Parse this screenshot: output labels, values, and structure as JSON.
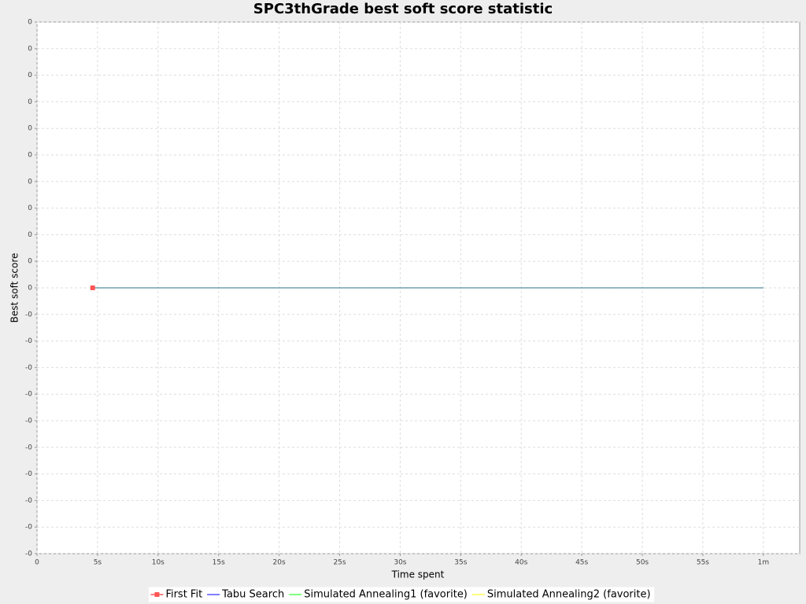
{
  "chart_data": {
    "type": "line",
    "title": "SPC3thGrade best soft score statistic",
    "x_label": "Time spent",
    "y_label": "Best soft score",
    "xlim": [
      0,
      63
    ],
    "xticks": [
      0,
      {
        "value": 5,
        "label": "5s"
      },
      {
        "value": 10,
        "label": "10s"
      },
      {
        "value": 15,
        "label": "15s"
      },
      {
        "value": 20,
        "label": "20s"
      },
      {
        "value": 25,
        "label": "25s"
      },
      {
        "value": 30,
        "label": "30s"
      },
      {
        "value": 35,
        "label": "35s"
      },
      {
        "value": 40,
        "label": "40s"
      },
      {
        "value": 45,
        "label": "45s"
      },
      {
        "value": 50,
        "label": "50s"
      },
      {
        "value": 55,
        "label": "55s"
      },
      {
        "value": 60,
        "label": "1m"
      }
    ],
    "ylim": [
      -0.001,
      0.001
    ],
    "yticks": [
      {
        "value": 0.001,
        "label": "0"
      },
      {
        "value": 0.0009,
        "label": "0"
      },
      {
        "value": 0.0008,
        "label": "0"
      },
      {
        "value": 0.0007,
        "label": "0"
      },
      {
        "value": 0.0006,
        "label": "0"
      },
      {
        "value": 0.0005,
        "label": "0"
      },
      {
        "value": 0.0004,
        "label": "0"
      },
      {
        "value": 0.0003,
        "label": "0"
      },
      {
        "value": 0.0002,
        "label": "0"
      },
      {
        "value": 0.0001,
        "label": "0"
      },
      {
        "value": 0,
        "label": "0"
      },
      {
        "value": -0.0001,
        "label": "-0"
      },
      {
        "value": -0.0002,
        "label": "-0"
      },
      {
        "value": -0.0003,
        "label": "-0"
      },
      {
        "value": -0.0004,
        "label": "-0"
      },
      {
        "value": -0.0005,
        "label": "-0"
      },
      {
        "value": -0.0006,
        "label": "-0"
      },
      {
        "value": -0.0007,
        "label": "-0"
      },
      {
        "value": -0.0008,
        "label": "-0"
      },
      {
        "value": -0.0009,
        "label": "-0"
      },
      {
        "value": -0.001,
        "label": "-0"
      }
    ],
    "grid": true,
    "legend": "bottom",
    "series": [
      {
        "name": "First Fit",
        "color": "#ff5555",
        "marker": "square",
        "x": [
          4.6
        ],
        "values": [
          0
        ]
      },
      {
        "name": "Tabu Search",
        "color": "#5555ff",
        "x": [
          4.6,
          60
        ],
        "values": [
          0,
          0
        ]
      },
      {
        "name": "Simulated Annealing1 (favorite)",
        "color": "#55ff55",
        "x": [
          4.6,
          60
        ],
        "values": [
          0,
          0
        ]
      },
      {
        "name": "Simulated Annealing2 (favorite)",
        "color": "#ffff55",
        "x": [
          4.6,
          60
        ],
        "values": [
          0,
          0
        ]
      }
    ]
  }
}
